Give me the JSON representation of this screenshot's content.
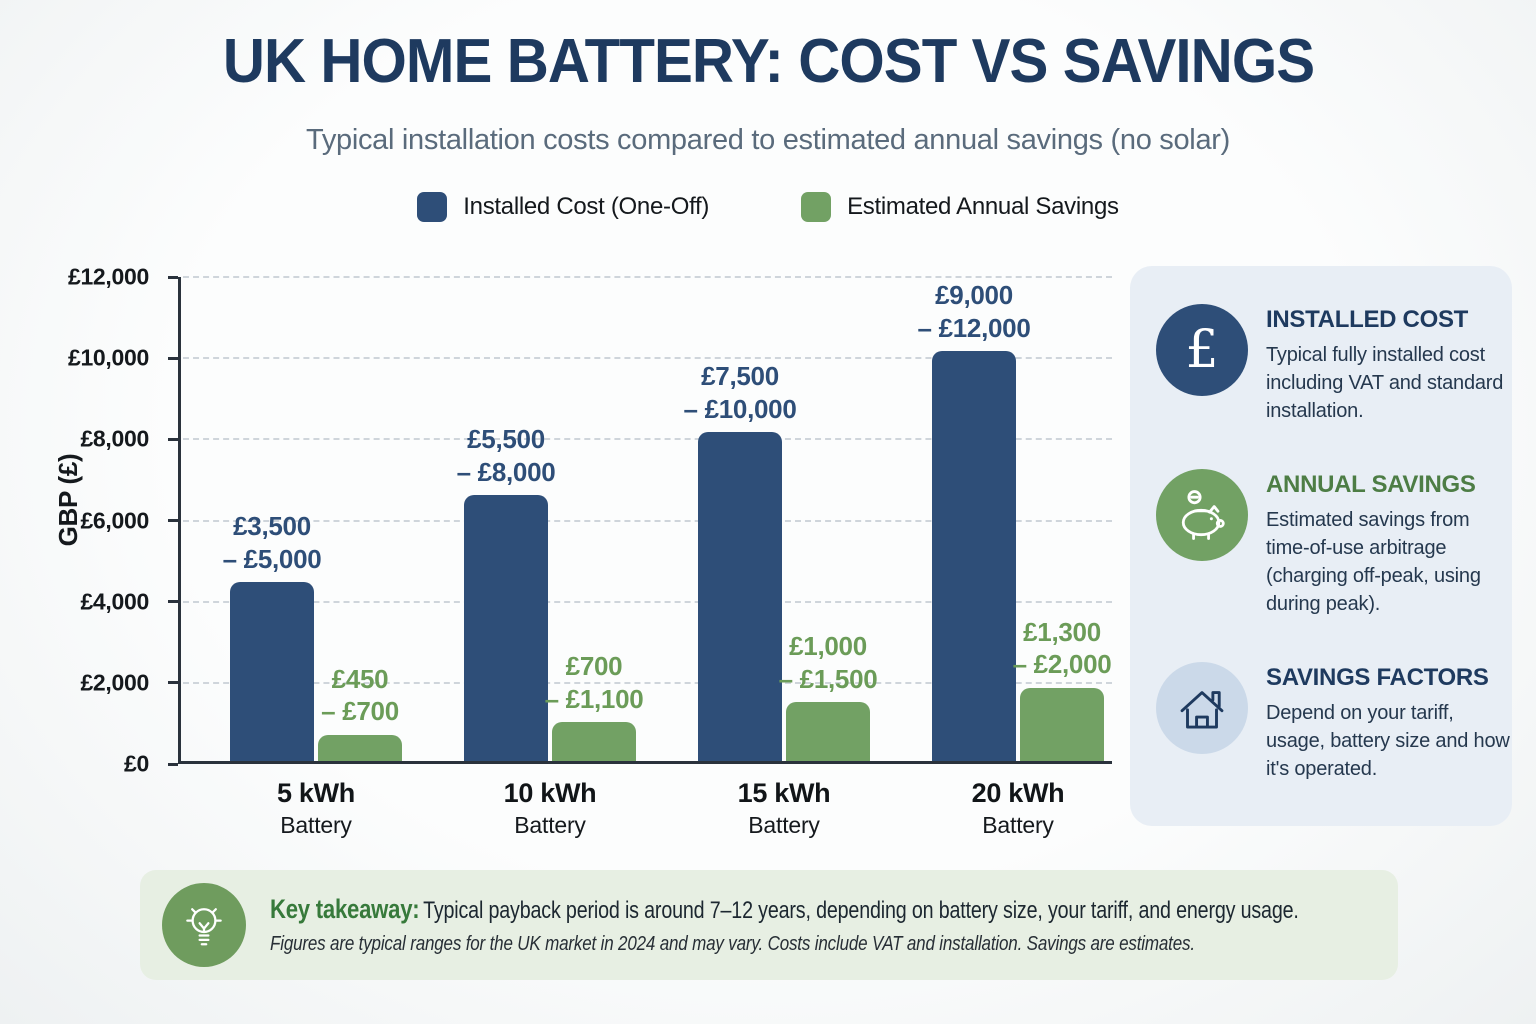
{
  "title": "UK HOME BATTERY: COST VS SAVINGS",
  "subtitle": "Typical installation costs compared to estimated annual savings (no solar)",
  "legend": [
    {
      "label": "Installed Cost (One-Off)",
      "color": "#2E4E78"
    },
    {
      "label": "Estimated Annual Savings",
      "color": "#72A164"
    }
  ],
  "chart_data": {
    "type": "bar",
    "title": "UK HOME BATTERY: COST VS SAVINGS",
    "subtitle": "Typical installation costs compared to estimated annual savings (no solar)",
    "categories": [
      "5 kWh",
      "10 kWh",
      "15 kWh",
      "20 kWh"
    ],
    "category_sublabel": "Battery",
    "xlabel": "",
    "ylabel": "GBP (£)",
    "ylim": [
      0,
      12000
    ],
    "ytick_step": 2000,
    "ytick_labels": [
      "£0",
      "£2,000",
      "£4,000",
      "£6,000",
      "£8,000",
      "£10,000",
      "£12,000"
    ],
    "grid": "horizontal-dashed",
    "legend_position": "top",
    "series": [
      {
        "name": "Installed Cost (One-Off)",
        "color": "#2E4E78",
        "label_color": "#2E4E78",
        "values": [
          4400,
          6550,
          8100,
          10100
        ],
        "range_labels": [
          [
            "£3,500",
            "– £5,000"
          ],
          [
            "£5,500",
            "– £8,000"
          ],
          [
            "£7,500",
            "– £10,000"
          ],
          [
            "£9,000",
            "– £12,000"
          ]
        ]
      },
      {
        "name": "Estimated Annual Savings",
        "color": "#72A164",
        "label_color": "#6B9C58",
        "values": [
          650,
          950,
          1450,
          1800
        ],
        "range_labels": [
          [
            "£450",
            "– £700"
          ],
          [
            "£700",
            "– £1,100"
          ],
          [
            "£1,000",
            "– £1,500"
          ],
          [
            "£1,300",
            "– £2,000"
          ]
        ]
      }
    ]
  },
  "panel": {
    "items": [
      {
        "icon": "pound-icon",
        "icon_glyph": "£",
        "circle_color": "#2E4E78",
        "title": "INSTALLED COST",
        "title_color": "#1E3A5F",
        "body": "Typical fully installed cost including VAT and standard installation."
      },
      {
        "icon": "piggy-bank-icon",
        "circle_color": "#72A164",
        "title": "ANNUAL SAVINGS",
        "title_color": "#4D7D45",
        "body": "Estimated savings from time-of-use arbitrage (charging off-peak, using during peak)."
      },
      {
        "icon": "house-icon",
        "circle_color": "#CBD9E9",
        "title": "SAVINGS FACTORS",
        "title_color": "#1E3A5F",
        "body": "Depend on your tariff, usage, battery size and how it's operated."
      }
    ]
  },
  "takeaway": {
    "icon": "lightbulb-icon",
    "label": "Key takeaway:",
    "text": "Typical payback period is around 7–12 years, depending on battery size, your tariff, and energy usage.",
    "footnote": "Figures are typical ranges for the UK market in 2024 and may vary. Costs include VAT and installation. Savings are estimates."
  }
}
